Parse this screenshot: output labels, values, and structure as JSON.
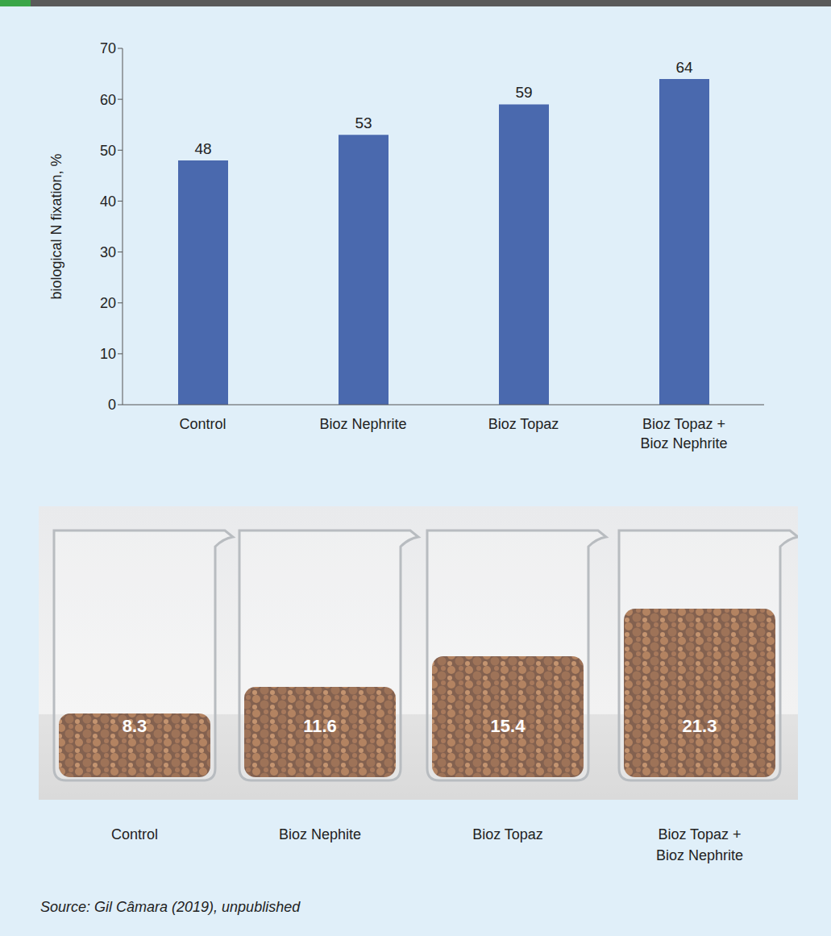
{
  "chart_data": {
    "type": "bar",
    "categories": [
      "Control",
      "Bioz Nephrite",
      "Bioz Topaz",
      "Bioz Topaz + Bioz Nephrite"
    ],
    "values": [
      48,
      53,
      59,
      64
    ],
    "color": "#4a69ae",
    "y_label": "biological N fixation, %",
    "ylim": [
      0,
      70
    ],
    "yticks": [
      0,
      10,
      20,
      30,
      40,
      50,
      60,
      70
    ],
    "grid": false,
    "data_labels": true
  },
  "photo": {
    "categories": [
      "Control",
      "Bioz Nephite",
      "Bioz Topaz",
      "Bioz Topaz + Bioz Nephrite"
    ],
    "values": [
      8.3,
      11.6,
      15.4,
      21.3
    ]
  },
  "source": "Source: Gil Câmara (2019), unpublished"
}
